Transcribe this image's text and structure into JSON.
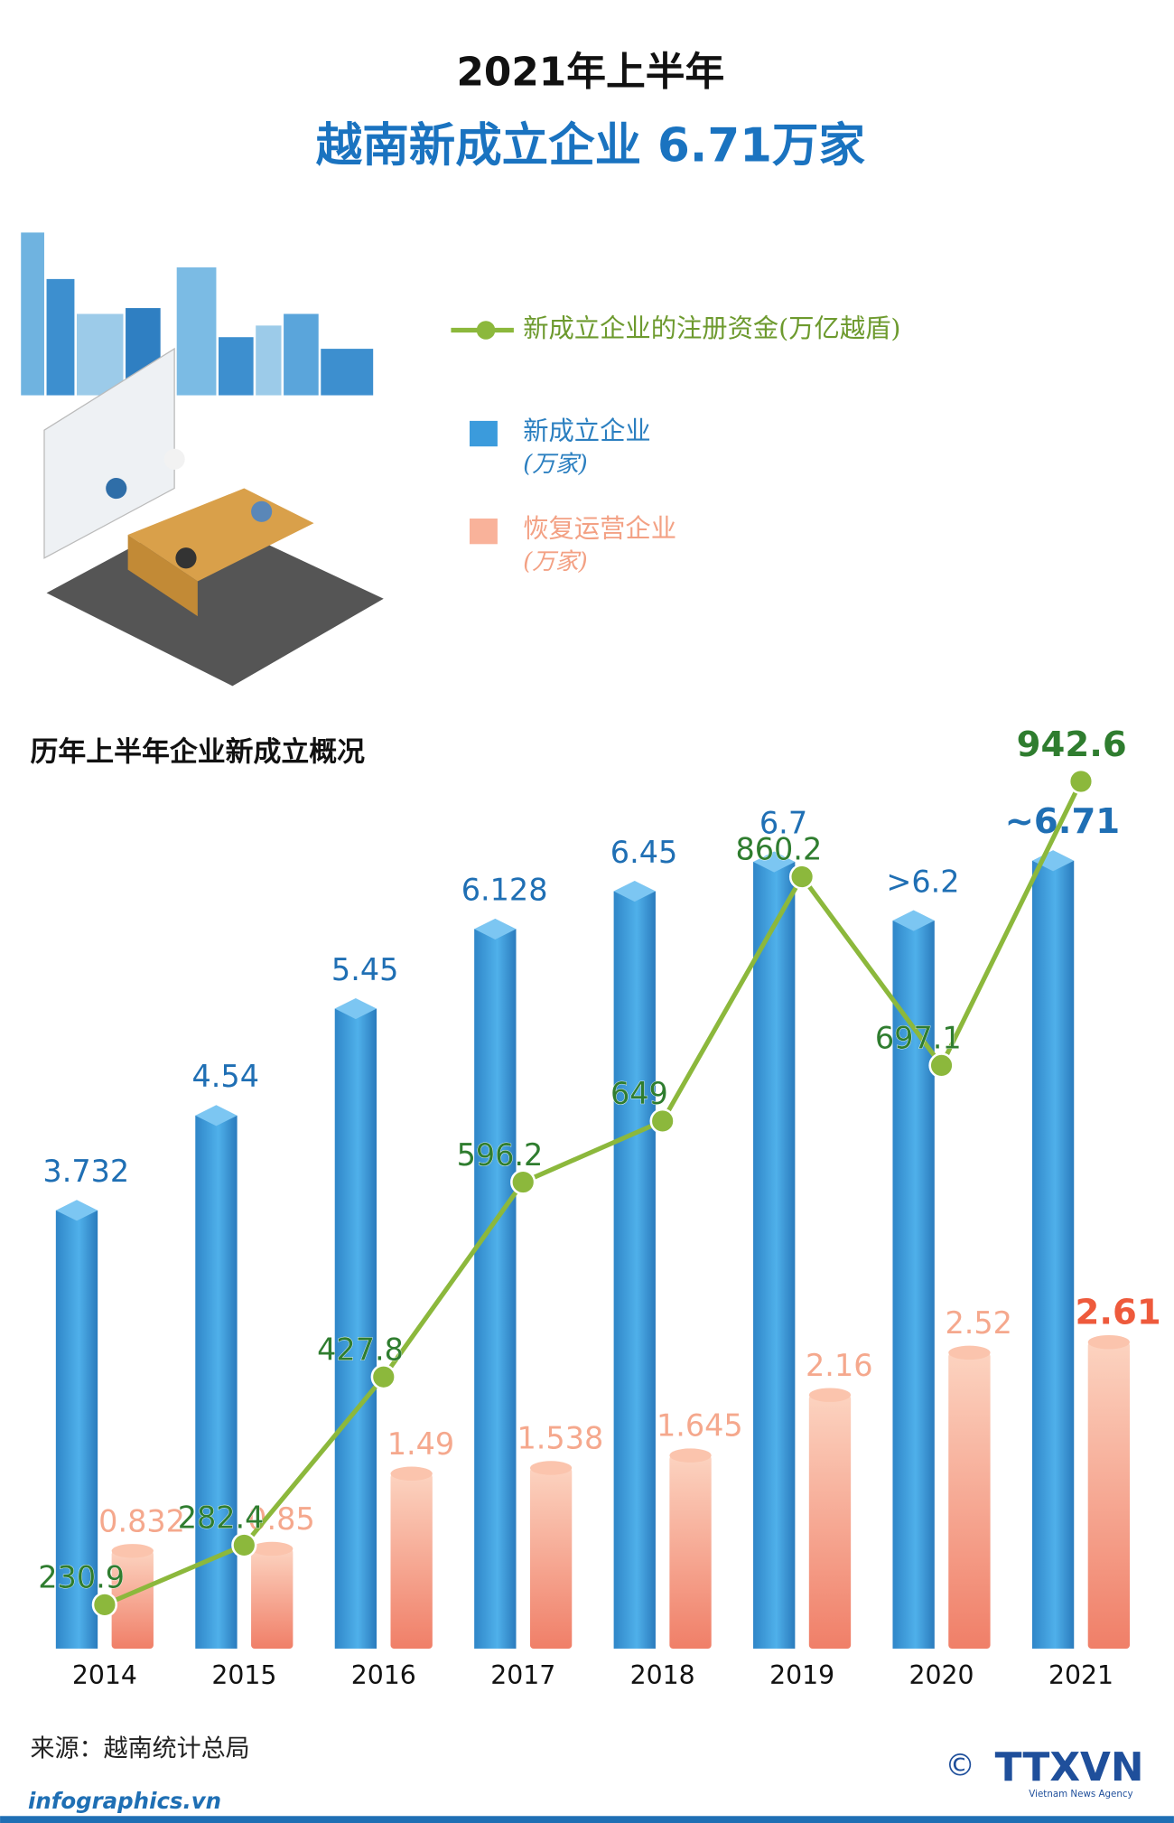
{
  "chart_data": {
    "type": "bar",
    "title": "2021年上半年",
    "subtitle": "越南新成立企业 6.71万家",
    "section_title": "历年上半年企业新成立概况",
    "categories": [
      "2014",
      "2015",
      "2016",
      "2017",
      "2018",
      "2019",
      "2020",
      "2021"
    ],
    "series": [
      {
        "name": "新成立企业",
        "unit": "(万家)",
        "type": "bar",
        "color": "#3b9bdc",
        "values": [
          3.732,
          4.54,
          5.45,
          6.128,
          6.45,
          6.7,
          6.2,
          6.71
        ],
        "value_labels": [
          "3.732",
          "4.54",
          "5.45",
          "6.128",
          "6.45",
          "6.7",
          ">6.2",
          "~6.71"
        ]
      },
      {
        "name": "恢复运营企业",
        "unit": "(万家)",
        "type": "bar",
        "color": "#f9b29a",
        "values": [
          0.832,
          0.85,
          1.49,
          1.538,
          1.645,
          2.16,
          2.52,
          2.61
        ]
      },
      {
        "name": "新成立企业的注册资金(万亿越盾)",
        "type": "line",
        "color": "#8cb83c",
        "values": [
          230.9,
          282.4,
          427.8,
          596.2,
          649,
          860.2,
          697.1,
          942.6
        ]
      }
    ],
    "source": "来源：越南统计总局",
    "website": "infographics.vn",
    "logo": "TTXVN",
    "logo_caption": "Vietnam News Agency",
    "copyright": "©"
  }
}
